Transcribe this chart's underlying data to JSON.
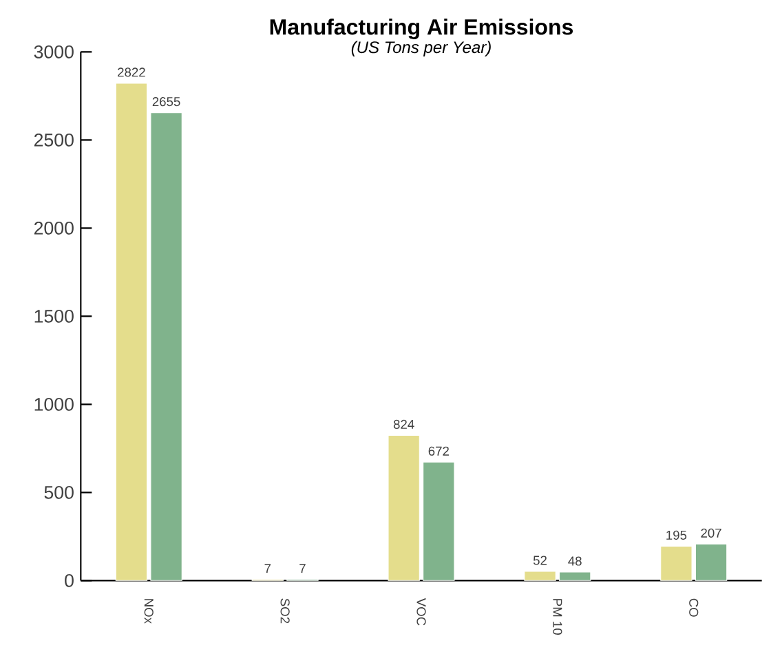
{
  "chart_data": {
    "type": "bar",
    "title": "Manufacturing Air Emissions",
    "subtitle": "(US Tons per Year)",
    "categories": [
      "NOx",
      "SO2",
      "VOC",
      "PM 10",
      "CO"
    ],
    "series": [
      {
        "color": "#e4dd8c",
        "values": [
          2822,
          7,
          824,
          52,
          195
        ]
      },
      {
        "color": "#80b38c",
        "values": [
          2655,
          7,
          672,
          48,
          207
        ]
      }
    ],
    "ylim": [
      0,
      3000
    ],
    "yticks": [
      0,
      500,
      1000,
      1500,
      2000,
      2500,
      3000
    ],
    "data_labels": true,
    "grid": false
  }
}
